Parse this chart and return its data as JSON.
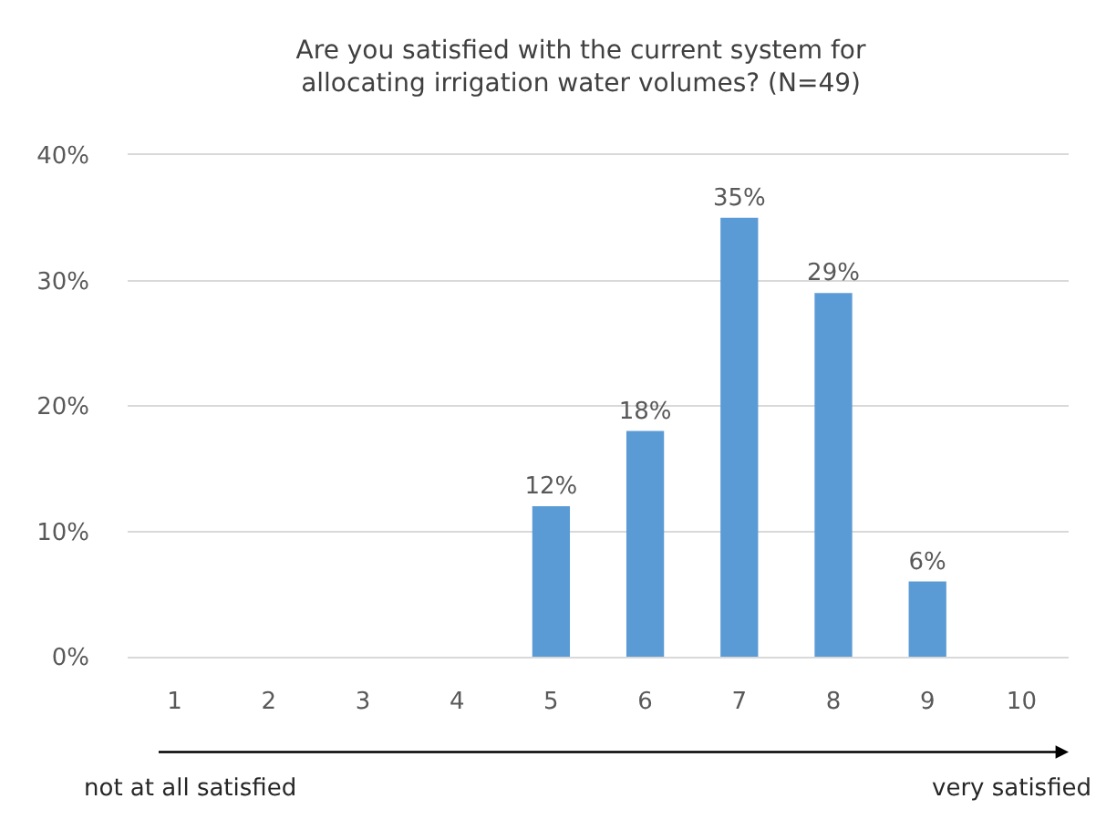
{
  "chart_data": {
    "type": "bar",
    "title": "Are you satisfied with the current system for allocating irrigation water volumes? (N=49)",
    "categories": [
      "1",
      "2",
      "3",
      "4",
      "5",
      "6",
      "7",
      "8",
      "9",
      "10"
    ],
    "values": [
      0,
      0,
      0,
      0,
      12,
      18,
      35,
      29,
      6,
      0
    ],
    "value_labels": [
      null,
      null,
      null,
      null,
      "12%",
      "18%",
      "35%",
      "29%",
      "6%",
      null
    ],
    "color": "#5b9bd5",
    "ylim": [
      0,
      40
    ],
    "yticks": [
      {
        "value": 0,
        "label": "0%"
      },
      {
        "value": 10,
        "label": "10%"
      },
      {
        "value": 20,
        "label": "20%"
      },
      {
        "value": 30,
        "label": "30%"
      },
      {
        "value": 40,
        "label": "40%"
      }
    ],
    "grid": "y",
    "annotations": [
      "not at all satisfied",
      "very satisfied"
    ]
  }
}
